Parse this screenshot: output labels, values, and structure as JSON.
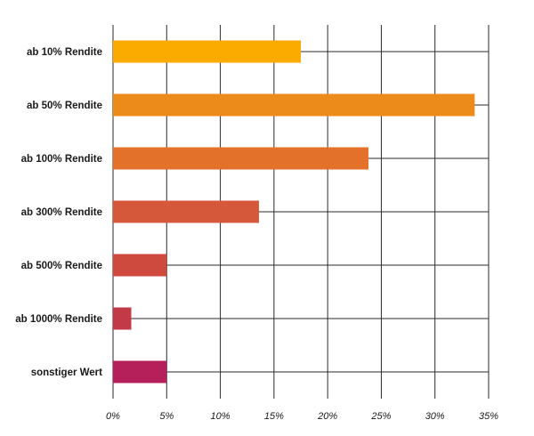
{
  "chart_data": {
    "type": "bar",
    "orientation": "horizontal",
    "categories": [
      "ab 10% Rendite",
      "ab 50% Rendite",
      "ab 100% Rendite",
      "ab 300% Rendite",
      "ab 500% Rendite",
      "ab 1000% Rendite",
      "sonstiger Wert"
    ],
    "values": [
      17.5,
      33.7,
      23.8,
      13.6,
      5.0,
      1.7,
      5.0
    ],
    "colors": [
      "#FBAA00",
      "#EC8A1A",
      "#E3712A",
      "#D6583A",
      "#CF4A3E",
      "#C23A48",
      "#B51F5A"
    ],
    "title": "",
    "xlabel": "",
    "ylabel": "",
    "xlim": [
      0,
      35
    ],
    "xticks": [
      0,
      5,
      10,
      15,
      20,
      25,
      30,
      35
    ],
    "xtick_labels": [
      "0%",
      "5%",
      "10%",
      "15%",
      "20%",
      "25%",
      "30%",
      "35%"
    ],
    "grid": true,
    "legend": "none"
  }
}
